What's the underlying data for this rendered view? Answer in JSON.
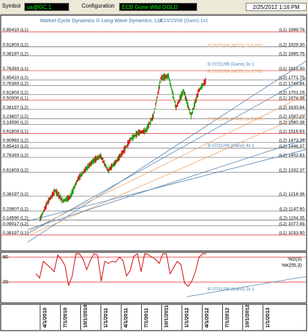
{
  "toolbar": {
    "symbol_label": "Symbol",
    "symbol_value": "us@GC.1",
    "configuration_label": "Configuration",
    "configuration_value": "ECB Gone Wild GOLD",
    "datetime": "2/25/2012 1:16 PM"
  },
  "colors": {
    "level_red": "#e41a1c",
    "level_gray": "#606060",
    "gann_blue": "#4a7fb0",
    "mcd_orange": "#e8a060",
    "up_bar": "#00a000",
    "down_bar": "#e00000",
    "indicator": "#d00000",
    "panel_text_blue": "#2e6fa8"
  },
  "chart_data": [
    {
      "type": "line",
      "title": "Market Cycle Dynamics © Long Wave Dynamics, LLC",
      "gann_label_top": "B 10/25/08 (Gann) 1x1",
      "xlabel": "",
      "ylabel": "",
      "ylim": [
        988,
        2020
      ],
      "price_series": {
        "name": "",
        "x": [
          "4/1/2010",
          "5/1/2010",
          "6/1/2010",
          "7/1/2010",
          "8/1/2010",
          "9/1/2010",
          "10/1/2010",
          "11/1/2010",
          "12/1/2010",
          "1/1/2011",
          "2/1/2011",
          "3/1/2011",
          "4/1/2011",
          "5/1/2011",
          "6/1/2011",
          "7/1/2011",
          "8/1/2011",
          "9/1/2011",
          "10/1/2011",
          "11/1/2011",
          "12/1/2011",
          "1/1/2012",
          "2/1/2012"
        ],
        "y": [
          1110,
          1190,
          1245,
          1195,
          1215,
          1300,
          1345,
          1385,
          1410,
          1340,
          1380,
          1430,
          1490,
          1520,
          1530,
          1600,
          1780,
          1790,
          1640,
          1720,
          1600,
          1720,
          1770
        ]
      },
      "levels": [
        {
          "left_label": "0.85410 (L1)",
          "right_label": "(L1) 1999.76",
          "value": 1999.76,
          "color": "red"
        },
        {
          "left_label": "0.61803 (L2)",
          "right_label": "(L2) 1929.30",
          "value": 1929.3,
          "color": "gray"
        },
        {
          "left_label": "0.38197 (L2)",
          "right_label": "(L2) 1885.76",
          "value": 1885.76,
          "color": "gray"
        },
        {
          "left_label": "0.76393 (L1)",
          "right_label": "(L1) 1815.30",
          "value": 1815.3,
          "color": "red"
        },
        {
          "left_label": "0.85410 (L2)",
          "right_label": "(L2) 1771.75",
          "value": 1771.75,
          "color": "gray"
        },
        {
          "left_label": "0.76393 (L2)",
          "right_label": "(L2) 1744.84",
          "value": 1744.84,
          "color": "gray"
        },
        {
          "left_label": "0.61803 (L2)",
          "right_label": "(L2) 1701.29",
          "value": 1701.29,
          "color": "gray"
        },
        {
          "left_label": "0.50000 (L1)",
          "right_label": "(L1) 1674.38",
          "value": 1674.38,
          "color": "red"
        },
        {
          "left_label": "0.38197 (L2)",
          "right_label": "(L2) 1630.84",
          "value": 1630.84,
          "color": "gray"
        },
        {
          "left_label": "0.23607 (L2)",
          "right_label": "(L2) 1587.29",
          "value": 1587.29,
          "color": "gray"
        },
        {
          "left_label": "0.14590 (L2)",
          "right_label": "(L2) 1560.38",
          "value": 1560.38,
          "color": "gray"
        },
        {
          "left_label": "0.61803 (L1)",
          "right_label": "(L1) 1516.83",
          "value": 1516.83,
          "color": "red"
        },
        {
          "left_label": "0.90983 (L2)",
          "right_label": "(L2) 1473.29",
          "value": 1473.29,
          "color": "gray"
        },
        {
          "left_label": "0.85410 (L2)",
          "right_label": "(L2) 1446.37",
          "value": 1446.37,
          "color": "gray"
        },
        {
          "left_label": "0.76393 (L2)",
          "right_label": "(L2) 1402.83",
          "value": 1402.83,
          "color": "gray"
        },
        {
          "left_label": "0.61803 (L2)",
          "right_label": "(L2) 1332.37",
          "value": 1332.37,
          "color": "gray"
        },
        {
          "left_label": "0.38197 (L2)",
          "right_label": "(L2) 1218.36",
          "value": 1218.36,
          "color": "gray"
        },
        {
          "left_label": "0.23607 (L2)",
          "right_label": "(L2) 1147.90",
          "value": 1147.9,
          "color": "gray"
        },
        {
          "left_label": "0.14590 (L2)",
          "right_label": "(L2) 1104.35",
          "value": 1104.35,
          "color": "gray"
        },
        {
          "left_label": "0.09017 (L2)",
          "right_label": "(L2) 1077.45",
          "value": 1077.45,
          "color": "gray"
        },
        {
          "left_label": "0.38197 (L1)",
          "right_label": "(L1) 1033.90",
          "value": 1033.9,
          "color": "red"
        }
      ],
      "trend_labels": [
        {
          "text": "B 10/25/08 (MCD) 1x 0.887",
          "style": "mcd",
          "value": 1929
        },
        {
          "text": "B 07/21/99 (Gann) 3x 1",
          "style": "gann",
          "value": 1840
        },
        {
          "text": "B 10/25/08 (MCD) 1x 0.785",
          "style": "mcd",
          "value": 1805
        },
        {
          "text": "B 10/25/08 (MCD) 1x 0.887",
          "style": "mcd",
          "value": 1580
        },
        {
          "text": "B 07/21/99 (Gann) 4x 1",
          "style": "gann",
          "value": 1452
        }
      ]
    },
    {
      "type": "line",
      "title": "",
      "ylim": [
        0,
        100
      ],
      "y_ticks": [
        "80",
        "20"
      ],
      "legend": [
        "%D(3)",
        "%K(55,3)"
      ],
      "gann_label": "B 07/21/99 (Gann) 2x 1",
      "series": [
        {
          "name": "%D(3)",
          "values": [
            40,
            30,
            70,
            62,
            55,
            45,
            85,
            75,
            60,
            12,
            35,
            88,
            90,
            75,
            50,
            72,
            88,
            85,
            22,
            70,
            65,
            70,
            68,
            80,
            72,
            35,
            48,
            82,
            88,
            45,
            92,
            86,
            80,
            75,
            65,
            88,
            90,
            40,
            55,
            70,
            62,
            18,
            10,
            22,
            45,
            80,
            90,
            97
          ]
        }
      ]
    },
    {
      "type": "line",
      "x_tick_labels": [
        "4/1/2010",
        "7/1/2010",
        "10/1/2010",
        "1/1/2011",
        "4/1/2011",
        "7/1/2011",
        "10/1/2011",
        "1/1/2012",
        "4/1/2012",
        "7/1/2012",
        "10/1/2012",
        "1/1/2013"
      ]
    }
  ]
}
